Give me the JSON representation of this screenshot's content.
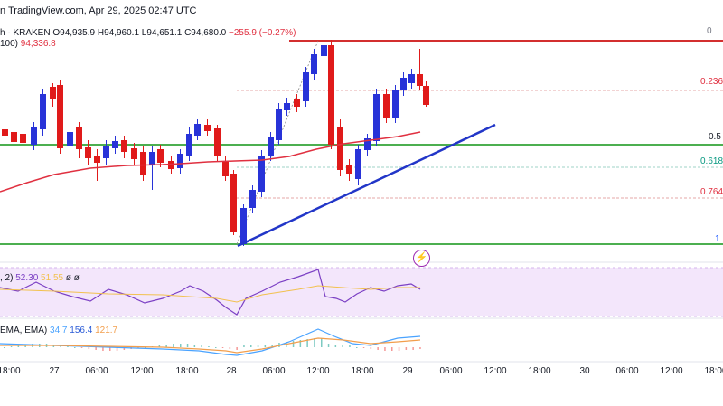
{
  "header": {
    "caption": "n TradingView.com, Apr 29, 2025 02:47 UTC",
    "symbol_tail": "h",
    "exchange": "KRAKEN",
    "open": "O94,935.9",
    "high": "H94,960.1",
    "low": "L94,651.1",
    "close": "C94,680.0",
    "change": "−255.9 (−0.27%)"
  },
  "ma_indicator": {
    "label": "100)",
    "value": "94,336.8"
  },
  "fib_levels": [
    "0",
    "0.236",
    "0.5",
    "0.618",
    "0.764",
    "1"
  ],
  "x_axis_labels": [
    "18:00",
    "27",
    "06:00",
    "12:00",
    "18:00",
    "28",
    "06:00",
    "12:00",
    "18:00",
    "29",
    "06:00",
    "12:00",
    "18:00",
    "30",
    "06:00",
    "12:00",
    "18:00"
  ],
  "rsi": {
    "label": ", 2)",
    "value1": "52.30",
    "value2": "51.55",
    "symbols": "ø ø"
  },
  "macd": {
    "label": "EMA, EMA)",
    "value1": "34.7",
    "value2": "156.4",
    "value3": "121.7"
  },
  "colors": {
    "up_candle": "#2833d8",
    "down_candle": "#e01a1a",
    "ma_line": "#e03040",
    "trendline": "#2236c8",
    "support": "#4caf50",
    "resistance": "#d32f2f",
    "rsi_line": "#7b3fc4",
    "rsi_band": "#f3e6fb",
    "macd_line": "#4aa3ff",
    "signal_line": "#f29e4c"
  },
  "icons": {
    "replay_badge": "lightning-icon"
  }
}
